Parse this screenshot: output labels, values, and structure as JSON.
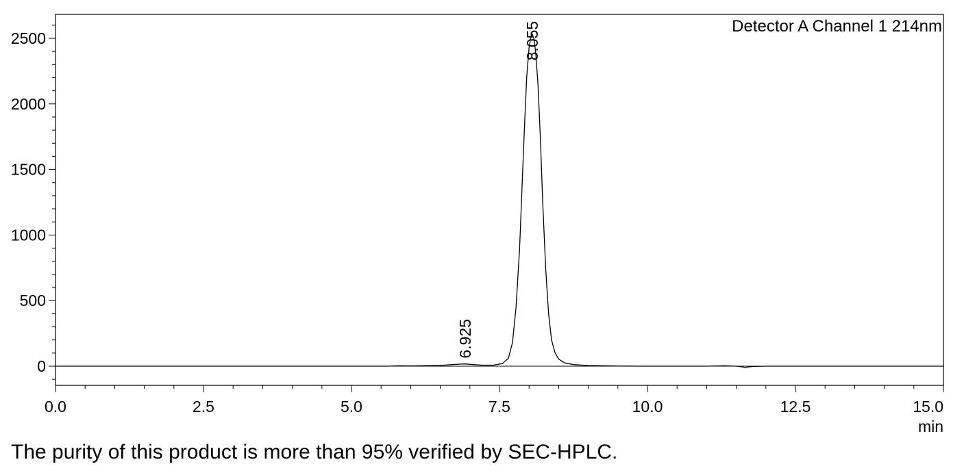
{
  "caption": "The purity of this product is more than 95% verified by SEC-HPLC.",
  "chart_data": {
    "type": "line",
    "title": "",
    "legend": "Detector A Channel 1 214nm",
    "legend_placement": "top-right",
    "xlabel": "min",
    "ylabel": "",
    "xlim": [
      0,
      15
    ],
    "ylim": [
      -150,
      2700
    ],
    "grid": false,
    "x_ticks": [
      "0.0",
      "2.5",
      "5.0",
      "7.5",
      "10.0",
      "12.5",
      "15.0"
    ],
    "y_ticks": [
      "0",
      "500",
      "1000",
      "1500",
      "2000",
      "2500"
    ],
    "peak_labels": [
      {
        "rt": 6.925,
        "label": "6.925"
      },
      {
        "rt": 8.055,
        "label": "8.055"
      }
    ],
    "series": [
      {
        "x": [
          0,
          5.6,
          5.8,
          6.0,
          6.3,
          6.5,
          6.7,
          6.85,
          6.925,
          7.0,
          7.2,
          7.4,
          7.55,
          7.65,
          7.72,
          7.78,
          7.84,
          7.88,
          7.92,
          7.96,
          8.0,
          8.03,
          8.055,
          8.08,
          8.11,
          8.15,
          8.19,
          8.23,
          8.28,
          8.33,
          8.38,
          8.44,
          8.5,
          8.6,
          8.75,
          9.0,
          9.5,
          10.0,
          11.0,
          11.3,
          11.5,
          11.6,
          11.65,
          11.7,
          11.8,
          12.0,
          15.0
        ],
        "y": [
          0,
          0,
          3,
          2,
          4,
          6,
          12,
          16,
          17,
          14,
          8,
          8,
          20,
          60,
          180,
          450,
          900,
          1350,
          1800,
          2200,
          2430,
          2510,
          2530,
          2500,
          2400,
          2150,
          1750,
          1250,
          750,
          400,
          200,
          100,
          55,
          25,
          12,
          5,
          1,
          0,
          0,
          3,
          0,
          -5,
          -10,
          -6,
          -2,
          0,
          0
        ]
      }
    ]
  }
}
